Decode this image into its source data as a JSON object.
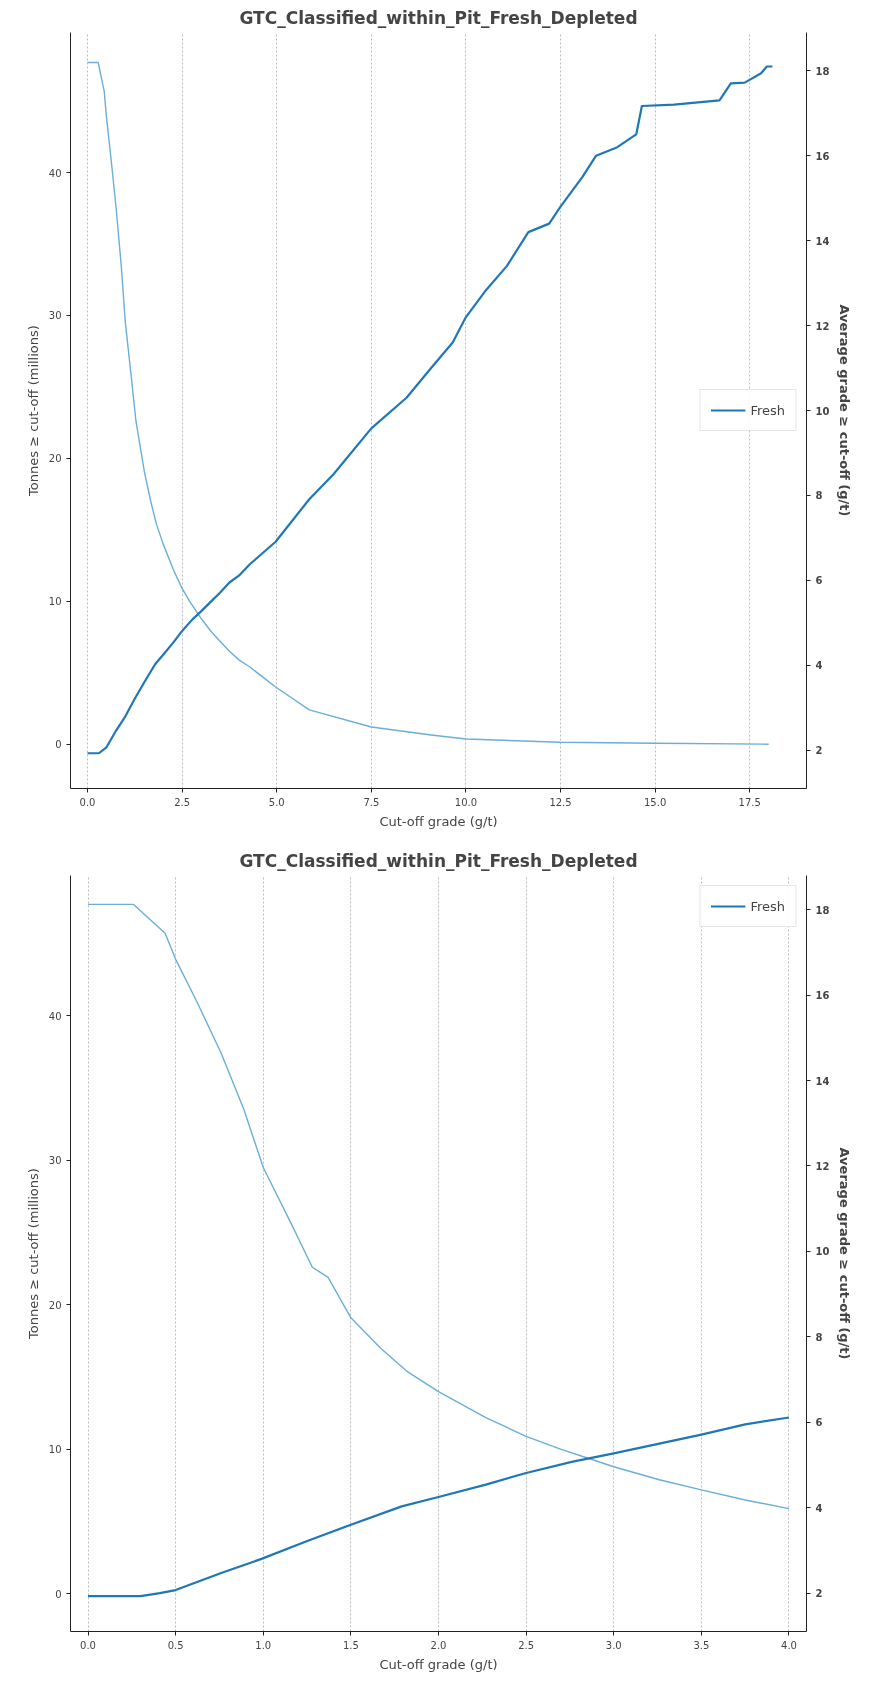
{
  "chart_data": [
    {
      "type": "line",
      "title": "GTC_Classified_within_Pit_Fresh_Depleted",
      "xlabel": "Cut-off grade (g/t)",
      "ylabel": "Tonnes ≥ cut-off (millions)",
      "y2label": "Average grade ≥ cut-off (g/t)",
      "xlim": [
        -0.45,
        19.0
      ],
      "ylim": [
        -3.1,
        49.8
      ],
      "y2lim": [
        1.1,
        18.9
      ],
      "xticks": [
        {
          "value": 0,
          "label": "0.0"
        },
        {
          "value": 2.5,
          "label": "2.5"
        },
        {
          "value": 5,
          "label": "5.0"
        },
        {
          "value": 7.5,
          "label": "7.5"
        },
        {
          "value": 10,
          "label": "10.0"
        },
        {
          "value": 12.5,
          "label": "12.5"
        },
        {
          "value": 15,
          "label": "15.0"
        },
        {
          "value": 17.5,
          "label": "17.5"
        }
      ],
      "yticks": [
        0,
        10,
        20,
        30,
        40
      ],
      "y2ticks": [
        2,
        4,
        6,
        8,
        10,
        12,
        14,
        16,
        18
      ],
      "grid": "x",
      "legend": "center right",
      "series": [
        {
          "color": "#6baed6",
          "x": [
            0,
            0.28,
            0.44,
            0.5,
            0.62,
            0.76,
            0.89,
            1.0,
            1.16,
            1.28,
            1.5,
            1.67,
            1.82,
            2.0,
            2.27,
            2.5,
            2.7,
            2.85,
            3.0,
            3.26,
            3.5,
            3.75,
            4.0,
            4.29,
            4.97,
            5.86,
            7.5,
            9.08,
            10.0,
            12.5,
            15.0,
            18.0
          ],
          "values": [
            47.7,
            47.7,
            45.7,
            43.9,
            41.0,
            37.4,
            33.5,
            29.5,
            25.6,
            22.6,
            19.1,
            17.0,
            15.4,
            14.0,
            12.2,
            10.9,
            10.0,
            9.4,
            8.8,
            7.9,
            7.2,
            6.5,
            5.9,
            5.4,
            4.0,
            2.4,
            1.2,
            0.64,
            0.36,
            0.14,
            0.07,
            0.0
          ]
        },
        {
          "name": "Fresh",
          "color": "#1f77b4",
          "axis": "y2",
          "x": [
            0,
            0.3,
            0.5,
            0.76,
            1.0,
            1.24,
            1.5,
            1.79,
            2.0,
            2.27,
            2.5,
            2.76,
            3.0,
            3.26,
            3.5,
            3.75,
            4.0,
            4.29,
            4.97,
            5.86,
            6.5,
            7.5,
            8.43,
            9.08,
            9.65,
            10.0,
            10.5,
            11.08,
            11.65,
            12.2,
            12.5,
            13.08,
            13.44,
            14.0,
            14.5,
            14.65,
            15.5,
            16.7,
            17.0,
            17.37,
            17.8,
            17.95,
            18.1
          ],
          "values": [
            1.93,
            1.93,
            2.07,
            2.47,
            2.8,
            3.2,
            3.6,
            4.03,
            4.25,
            4.54,
            4.81,
            5.07,
            5.27,
            5.5,
            5.71,
            5.95,
            6.11,
            6.38,
            6.91,
            7.91,
            8.5,
            9.58,
            10.3,
            11.0,
            11.6,
            12.2,
            12.8,
            13.4,
            14.2,
            14.4,
            14.8,
            15.5,
            16.0,
            16.2,
            16.5,
            17.17,
            17.2,
            17.3,
            17.7,
            17.72,
            17.94,
            18.1,
            18.1
          ]
        }
      ]
    },
    {
      "type": "line",
      "title": "GTC_Classified_within_Pit_Fresh_Depleted",
      "xlabel": "Cut-off grade (g/t)",
      "ylabel": "Tonnes ≥ cut-off (millions)",
      "y2label": "Average grade ≥ cut-off (g/t)",
      "xlim": [
        -0.1,
        4.1
      ],
      "ylim": [
        -2.6,
        49.7
      ],
      "y2lim": [
        1.1,
        18.8
      ],
      "xticks": [
        {
          "value": 0,
          "label": "0.0"
        },
        {
          "value": 0.5,
          "label": "0.5"
        },
        {
          "value": 1,
          "label": "1.0"
        },
        {
          "value": 1.5,
          "label": "1.5"
        },
        {
          "value": 2,
          "label": "2.0"
        },
        {
          "value": 2.5,
          "label": "2.5"
        },
        {
          "value": 3,
          "label": "3.0"
        },
        {
          "value": 3.5,
          "label": "3.5"
        },
        {
          "value": 4,
          "label": "4.0"
        }
      ],
      "yticks": [
        0,
        10,
        20,
        30,
        40
      ],
      "y2ticks": [
        2,
        4,
        6,
        8,
        10,
        12,
        14,
        16,
        18
      ],
      "grid": "x",
      "legend": "top right",
      "series": [
        {
          "color": "#6baed6",
          "x": [
            0,
            0.26,
            0.44,
            0.5,
            0.62,
            0.76,
            0.89,
            1.0,
            1.16,
            1.28,
            1.37,
            1.5,
            1.67,
            1.82,
            2.0,
            2.27,
            2.5,
            2.7,
            2.85,
            3.0,
            3.26,
            3.5,
            3.75,
            4.0
          ],
          "values": [
            47.7,
            47.7,
            45.7,
            43.9,
            41.0,
            37.4,
            33.5,
            29.5,
            25.6,
            22.6,
            21.9,
            19.1,
            17.0,
            15.4,
            14.0,
            12.2,
            10.9,
            10.0,
            9.4,
            8.8,
            7.9,
            7.2,
            6.5,
            5.9
          ]
        },
        {
          "name": "Fresh",
          "color": "#1f77b4",
          "axis": "y2",
          "x": [
            0,
            0.3,
            0.41,
            0.5,
            0.76,
            0.99,
            1.24,
            1.5,
            1.79,
            2.0,
            2.27,
            2.5,
            2.76,
            3.0,
            3.26,
            3.5,
            3.75,
            4.0
          ],
          "values": [
            1.93,
            1.93,
            2.0,
            2.07,
            2.47,
            2.8,
            3.2,
            3.6,
            4.03,
            4.25,
            4.54,
            4.81,
            5.07,
            5.27,
            5.5,
            5.71,
            5.95,
            6.11
          ]
        }
      ]
    }
  ]
}
